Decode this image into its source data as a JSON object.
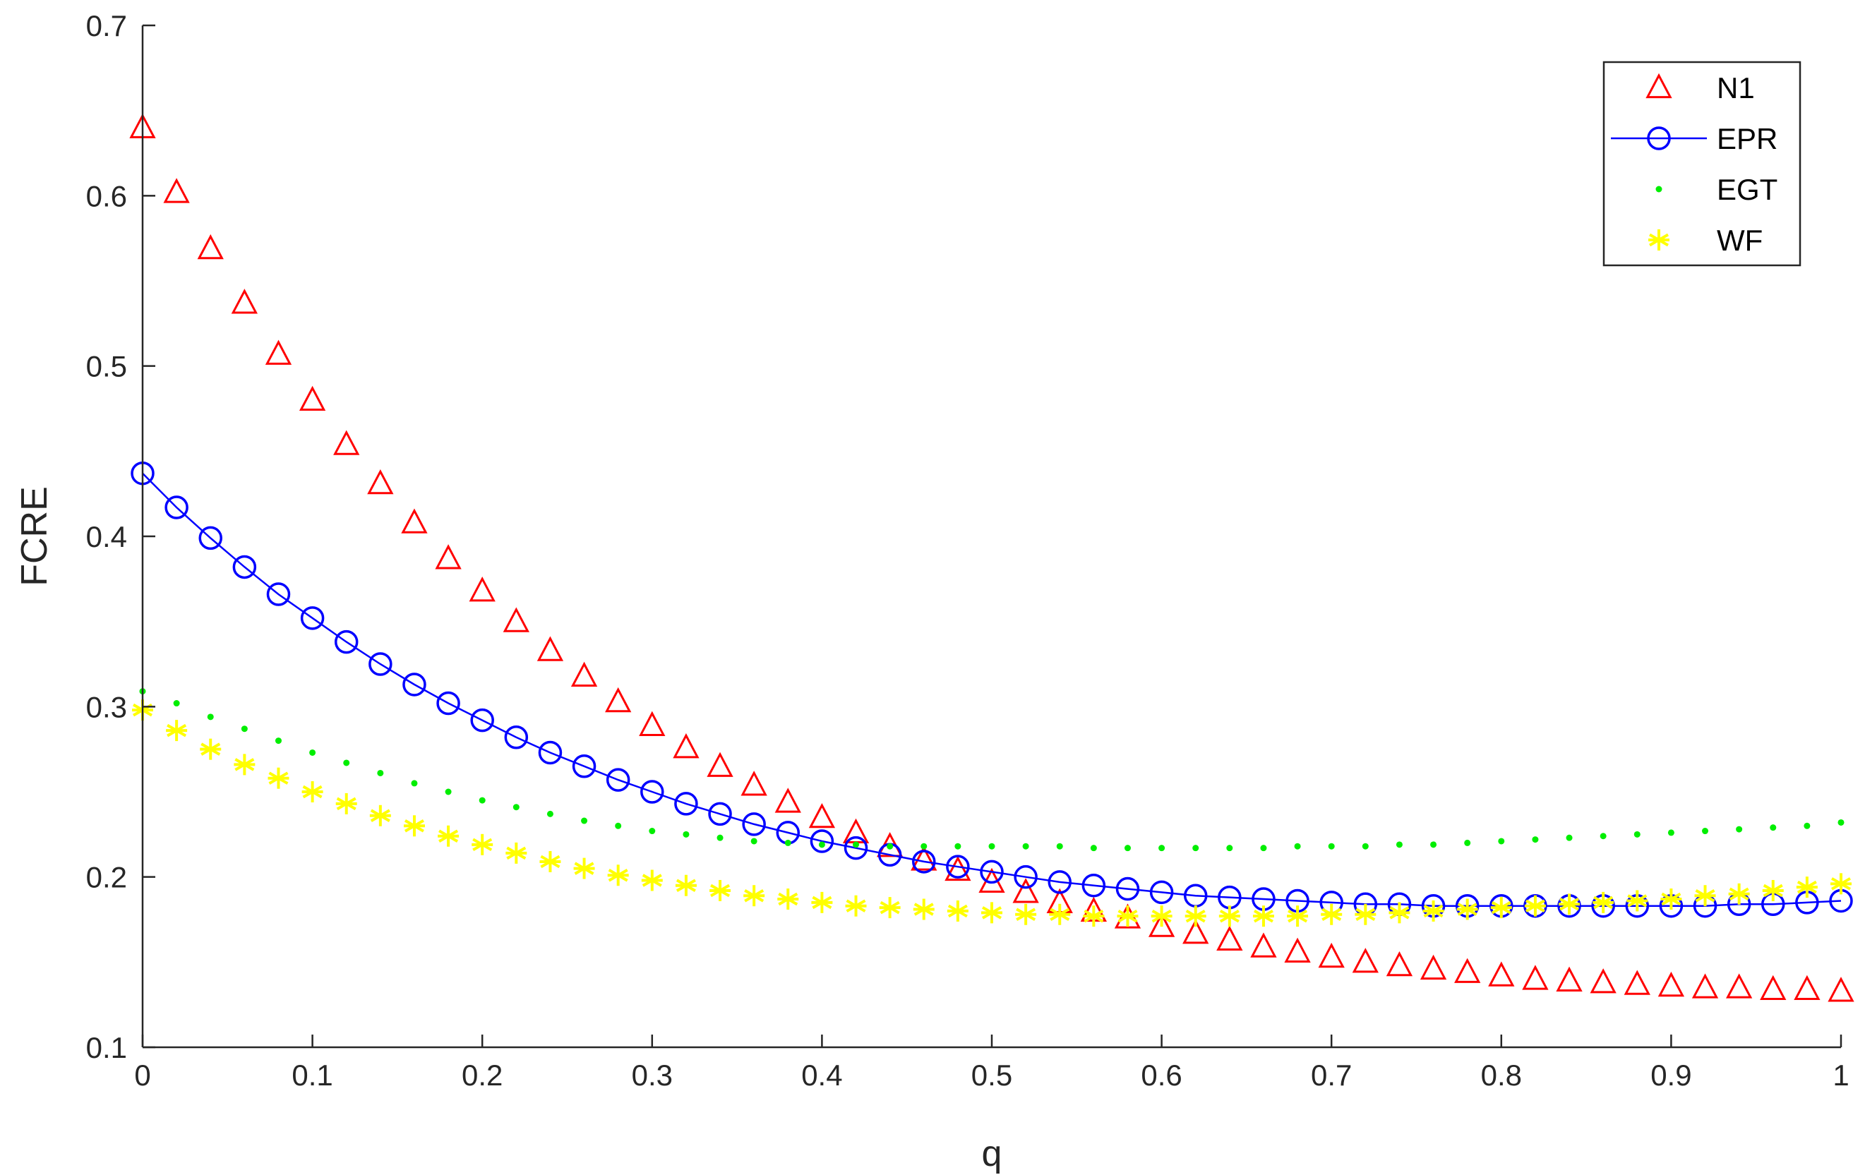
{
  "chart_data": {
    "type": "line",
    "xlabel": "q",
    "ylabel": "FCRE",
    "xlim": [
      0,
      1
    ],
    "ylim": [
      0.1,
      0.7
    ],
    "xticks": [
      "0",
      "0.1",
      "0.2",
      "0.3",
      "0.4",
      "0.5",
      "0.6",
      "0.7",
      "0.8",
      "0.9",
      "1"
    ],
    "yticks": [
      "0.1",
      "0.2",
      "0.3",
      "0.4",
      "0.5",
      "0.6",
      "0.7"
    ],
    "grid": false,
    "legend_position": "top-right",
    "x": [
      0,
      0.02,
      0.04,
      0.06,
      0.08,
      0.1,
      0.12,
      0.14,
      0.16,
      0.18,
      0.2,
      0.22,
      0.24,
      0.26,
      0.28,
      0.3,
      0.32,
      0.34,
      0.36,
      0.38,
      0.4,
      0.42,
      0.44,
      0.46,
      0.48,
      0.5,
      0.52,
      0.54,
      0.56,
      0.58,
      0.6,
      0.62,
      0.64,
      0.66,
      0.68,
      0.7,
      0.72,
      0.74,
      0.76,
      0.78,
      0.8,
      0.82,
      0.84,
      0.86,
      0.88,
      0.9,
      0.92,
      0.94,
      0.96,
      0.98,
      1.0
    ],
    "series": [
      {
        "name": "N1",
        "marker": "triangle",
        "line": false,
        "color": "#ff0000",
        "values": [
          0.64,
          0.602,
          0.569,
          0.537,
          0.507,
          0.48,
          0.454,
          0.431,
          0.408,
          0.387,
          0.368,
          0.35,
          0.333,
          0.318,
          0.303,
          0.289,
          0.276,
          0.265,
          0.254,
          0.244,
          0.235,
          0.226,
          0.218,
          0.21,
          0.204,
          0.197,
          0.191,
          0.185,
          0.18,
          0.176,
          0.171,
          0.167,
          0.163,
          0.159,
          0.156,
          0.153,
          0.15,
          0.148,
          0.146,
          0.144,
          0.142,
          0.14,
          0.139,
          0.138,
          0.137,
          0.136,
          0.135,
          0.135,
          0.134,
          0.134,
          0.133
        ]
      },
      {
        "name": "EPR",
        "marker": "circle",
        "line": true,
        "color": "#0000ff",
        "values": [
          0.437,
          0.417,
          0.399,
          0.382,
          0.366,
          0.352,
          0.338,
          0.325,
          0.313,
          0.302,
          0.292,
          0.282,
          0.273,
          0.265,
          0.257,
          0.25,
          0.243,
          0.237,
          0.231,
          0.226,
          0.221,
          0.217,
          0.213,
          0.209,
          0.206,
          0.203,
          0.2,
          0.197,
          0.195,
          0.193,
          0.191,
          0.189,
          0.188,
          0.187,
          0.186,
          0.185,
          0.184,
          0.184,
          0.183,
          0.183,
          0.183,
          0.183,
          0.183,
          0.183,
          0.183,
          0.183,
          0.183,
          0.184,
          0.184,
          0.185,
          0.186
        ]
      },
      {
        "name": "EGT",
        "marker": "dot",
        "line": false,
        "color": "#00ee00",
        "values": [
          0.309,
          0.302,
          0.294,
          0.287,
          0.28,
          0.273,
          0.267,
          0.261,
          0.255,
          0.25,
          0.245,
          0.241,
          0.237,
          0.233,
          0.23,
          0.227,
          0.225,
          0.223,
          0.221,
          0.22,
          0.219,
          0.219,
          0.218,
          0.218,
          0.218,
          0.218,
          0.218,
          0.218,
          0.217,
          0.217,
          0.217,
          0.217,
          0.217,
          0.217,
          0.218,
          0.218,
          0.218,
          0.219,
          0.219,
          0.22,
          0.221,
          0.222,
          0.223,
          0.224,
          0.225,
          0.226,
          0.227,
          0.228,
          0.229,
          0.23,
          0.232
        ]
      },
      {
        "name": "WF",
        "marker": "asterisk",
        "line": false,
        "color": "#ffff00",
        "values": [
          0.298,
          0.286,
          0.275,
          0.266,
          0.258,
          0.25,
          0.243,
          0.236,
          0.23,
          0.224,
          0.219,
          0.214,
          0.209,
          0.205,
          0.201,
          0.198,
          0.195,
          0.192,
          0.189,
          0.187,
          0.185,
          0.183,
          0.182,
          0.181,
          0.18,
          0.179,
          0.178,
          0.178,
          0.177,
          0.177,
          0.177,
          0.177,
          0.177,
          0.177,
          0.177,
          0.178,
          0.178,
          0.179,
          0.18,
          0.181,
          0.182,
          0.183,
          0.184,
          0.185,
          0.186,
          0.187,
          0.189,
          0.19,
          0.192,
          0.194,
          0.196
        ]
      }
    ]
  }
}
